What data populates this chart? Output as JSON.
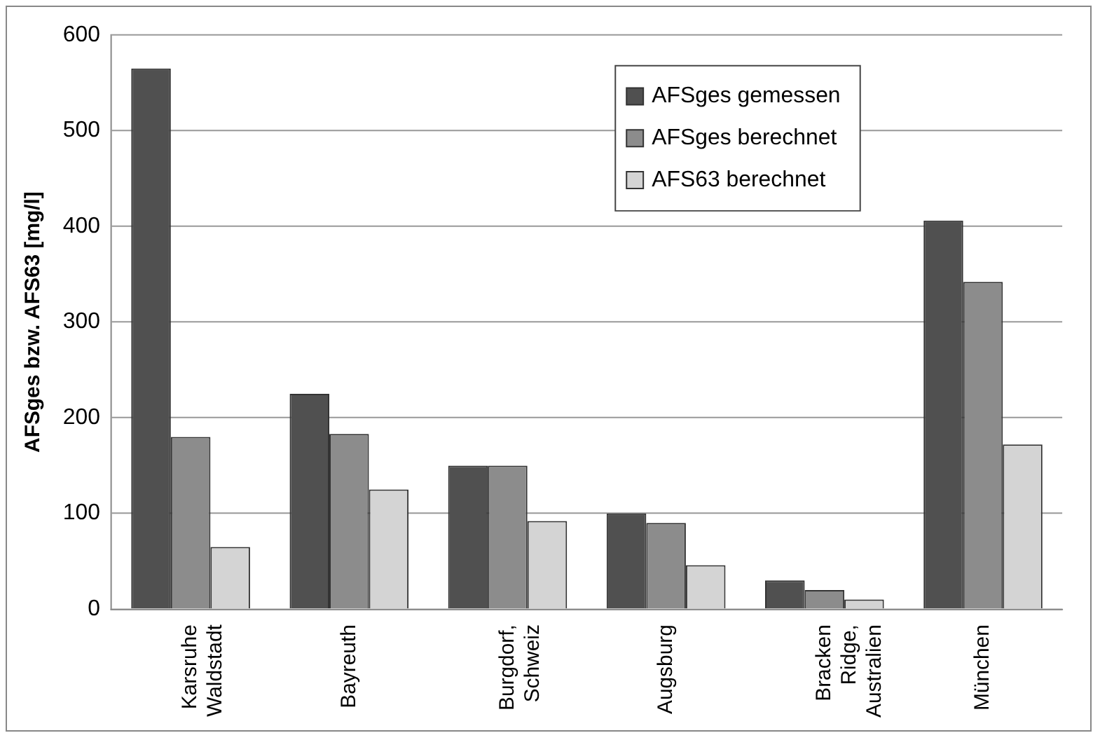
{
  "chart_data": {
    "type": "bar",
    "ylabel": "AFSges bzw. AFS63 [mg/l]",
    "categories": [
      "Karsruhe\nWaldstadt",
      "Bayreuth",
      "Burgdorf,\nSchweiz",
      "Augsburg",
      "Bracken\nRidge,\nAustralien",
      "München"
    ],
    "series": [
      {
        "name": "AFSges gemessen",
        "color": "#505050",
        "values": [
          565,
          225,
          150,
          100,
          30,
          406
        ]
      },
      {
        "name": "AFSges berechnet",
        "color": "#8c8c8c",
        "values": [
          180,
          183,
          150,
          90,
          20,
          342
        ]
      },
      {
        "name": "AFS63 berechnet",
        "color": "#d4d4d4",
        "values": [
          65,
          125,
          92,
          46,
          10,
          172
        ]
      }
    ],
    "ylim": [
      0,
      600
    ],
    "yticks": [
      0,
      100,
      200,
      300,
      400,
      500,
      600
    ],
    "grid": "y",
    "legend": "top right"
  }
}
